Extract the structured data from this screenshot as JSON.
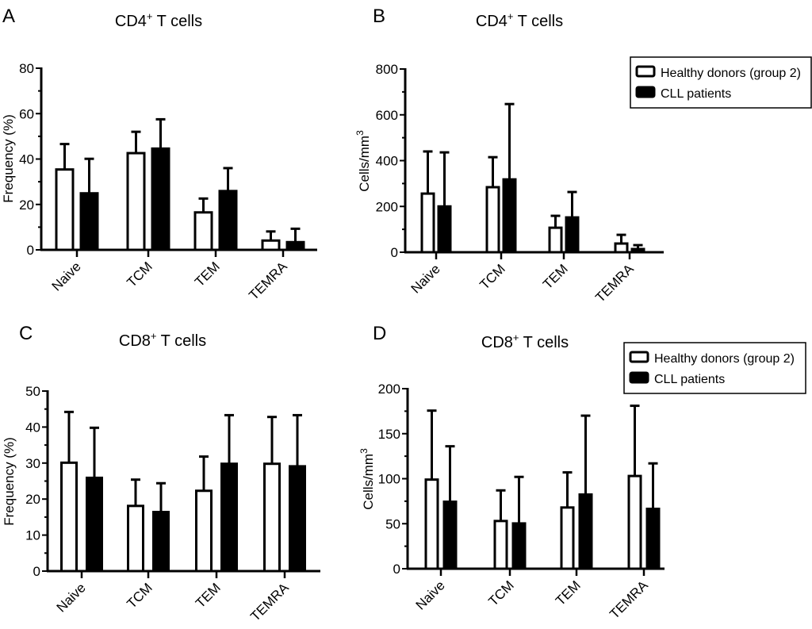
{
  "legend": {
    "items": [
      {
        "label": "Healthy donors (group 2)",
        "fill": "#ffffff"
      },
      {
        "label": "CLL patients",
        "fill": "#000000"
      }
    ]
  },
  "chart_data": [
    {
      "panel": "A",
      "type": "bar",
      "title": "CD4",
      "title_sup": "+",
      "title_rest": " T cells",
      "xlabel": "",
      "ylabel": "Frequency (%)",
      "ylim": [
        0,
        80
      ],
      "yticks": [
        0,
        20,
        40,
        60,
        80
      ],
      "categories": [
        "Naive",
        "TCM",
        "TEM",
        "TEMRA"
      ],
      "legend": "none",
      "series": [
        {
          "name": "Healthy donors (group 2)",
          "values": [
            35.4,
            42.6,
            16.5,
            4.1
          ],
          "error_upper": [
            46.6,
            52.0,
            22.6,
            8.1
          ]
        },
        {
          "name": "CLL patients",
          "values": [
            24.9,
            44.6,
            25.9,
            3.4
          ],
          "error_upper": [
            40.1,
            57.5,
            36.0,
            9.3
          ]
        }
      ]
    },
    {
      "panel": "B",
      "type": "bar",
      "title": "CD4",
      "title_sup": "+",
      "title_rest": " T cells",
      "xlabel": "",
      "ylabel": "Cells/mm",
      "ylabel_sup": "3",
      "ylim": [
        0,
        800
      ],
      "yticks": [
        0,
        200,
        400,
        600,
        800
      ],
      "categories": [
        "Naive",
        "TCM",
        "TEM",
        "TEMRA"
      ],
      "legend": "top-right",
      "series": [
        {
          "name": "Healthy donors (group 2)",
          "values": [
            256,
            284,
            107,
            38
          ],
          "error_upper": [
            440,
            415,
            159,
            76
          ]
        },
        {
          "name": "CLL patients",
          "values": [
            200,
            318,
            152,
            14
          ],
          "error_upper": [
            436,
            647,
            263,
            31
          ]
        }
      ]
    },
    {
      "panel": "C",
      "type": "bar",
      "title": "CD8",
      "title_sup": "+",
      "title_rest": " T cells",
      "xlabel": "",
      "ylabel": "Frequency (%)",
      "ylim": [
        0,
        50
      ],
      "yticks": [
        0,
        10,
        20,
        30,
        40,
        50
      ],
      "categories": [
        "Naive",
        "TCM",
        "TEM",
        "TEMRA"
      ],
      "legend": "none",
      "series": [
        {
          "name": "Healthy donors (group 2)",
          "values": [
            30.1,
            18.1,
            22.3,
            29.8
          ],
          "error_upper": [
            44.2,
            25.4,
            31.8,
            42.8
          ]
        },
        {
          "name": "CLL patients",
          "values": [
            25.9,
            16.4,
            29.8,
            29.1
          ],
          "error_upper": [
            39.8,
            24.4,
            43.3,
            43.3
          ]
        }
      ]
    },
    {
      "panel": "D",
      "type": "bar",
      "title": "CD8",
      "title_sup": "+",
      "title_rest": " T cells",
      "xlabel": "",
      "ylabel": "Cells/mm",
      "ylabel_sup": "3",
      "ylim": [
        0,
        200
      ],
      "yticks": [
        0,
        50,
        100,
        150,
        200
      ],
      "categories": [
        "Naive",
        "TCM",
        "TEM",
        "TEMRA"
      ],
      "legend": "top-right",
      "series": [
        {
          "name": "Healthy donors (group 2)",
          "values": [
            99,
            53,
            68,
            103
          ],
          "error_upper": [
            175.6,
            87,
            107,
            181
          ]
        },
        {
          "name": "CLL patients",
          "values": [
            74.4,
            50.3,
            82.4,
            66.5
          ],
          "error_upper": [
            136,
            102,
            170,
            117
          ]
        }
      ]
    }
  ]
}
